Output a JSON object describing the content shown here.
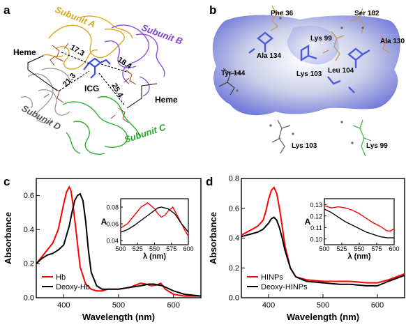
{
  "figure": {
    "panels": {
      "a": {
        "letter": "a",
        "subunits": {
          "A": {
            "label": "Subunit A",
            "color": "#d8a824"
          },
          "B": {
            "label": "Subunit B",
            "color": "#7b3ecb"
          },
          "C": {
            "label": "Subunit C",
            "color": "#29a629"
          },
          "D": {
            "label": "Subunit D",
            "color": "#555555"
          }
        },
        "heme_left": "Heme",
        "heme_right": "Heme",
        "center": "ICG",
        "distances": [
          "17.3",
          "18.4",
          "21.3",
          "25.4"
        ]
      },
      "b": {
        "letter": "b",
        "residues": [
          "Phe 36",
          "Ser 102",
          "Lys 99",
          "Ala 130",
          "Ala 134",
          "Tyr 144",
          "Lys 103",
          "Leu 104",
          "Lys 103",
          "Lys 99"
        ]
      },
      "c": {
        "letter": "c"
      },
      "d": {
        "letter": "d"
      }
    }
  },
  "chart_data": [
    {
      "panel": "c",
      "type": "line",
      "xlabel": "Wavelength (nm)",
      "ylabel": "Absorbance",
      "xlim": [
        350,
        650
      ],
      "ylim": [
        0.0,
        0.7
      ],
      "xticks": [
        400,
        500,
        600
      ],
      "yticks": [
        0.0,
        0.2,
        0.4,
        0.6
      ],
      "legend": "bottom-left",
      "series": [
        {
          "name": "Hb",
          "color": "#ff0000",
          "x": [
            350,
            360,
            370,
            380,
            390,
            400,
            405,
            410,
            413,
            416,
            420,
            425,
            430,
            440,
            450,
            460,
            470,
            480,
            500,
            520,
            540,
            550,
            560,
            570,
            577,
            585,
            600,
            620,
            650
          ],
          "y": [
            0.2,
            0.24,
            0.28,
            0.32,
            0.4,
            0.55,
            0.62,
            0.65,
            0.63,
            0.57,
            0.46,
            0.32,
            0.18,
            0.08,
            0.05,
            0.04,
            0.04,
            0.05,
            0.05,
            0.06,
            0.085,
            0.08,
            0.07,
            0.075,
            0.085,
            0.05,
            0.02,
            0.01,
            0.01
          ]
        },
        {
          "name": "Deoxy-Hb",
          "color": "#000000",
          "x": [
            350,
            360,
            370,
            380,
            390,
            400,
            410,
            415,
            420,
            425,
            430,
            435,
            440,
            445,
            450,
            460,
            470,
            480,
            500,
            520,
            540,
            555,
            565,
            580,
            600,
            620,
            650
          ],
          "y": [
            0.2,
            0.23,
            0.25,
            0.26,
            0.28,
            0.31,
            0.42,
            0.5,
            0.57,
            0.6,
            0.61,
            0.57,
            0.45,
            0.28,
            0.15,
            0.07,
            0.05,
            0.05,
            0.05,
            0.06,
            0.07,
            0.08,
            0.08,
            0.07,
            0.04,
            0.02,
            0.01
          ]
        }
      ],
      "inset": {
        "xlabel": "λ (nm)",
        "ylabel": "A",
        "xlim": [
          500,
          600
        ],
        "ylim": [
          0.035,
          0.09
        ],
        "xticks": [
          500,
          525,
          550,
          575,
          600
        ],
        "yticks": [
          0.04,
          0.06,
          0.08
        ],
        "series": [
          {
            "name": "Hb",
            "color": "#ff0000",
            "x": [
              500,
              510,
              520,
              530,
              540,
              550,
              555,
              560,
              565,
              570,
              577,
              585,
              595,
              600
            ],
            "y": [
              0.055,
              0.06,
              0.07,
              0.08,
              0.085,
              0.078,
              0.072,
              0.068,
              0.07,
              0.075,
              0.08,
              0.068,
              0.052,
              0.045
            ]
          },
          {
            "name": "Deoxy-Hb",
            "color": "#000000",
            "x": [
              500,
              510,
              520,
              530,
              540,
              550,
              555,
              560,
              570,
              580,
              590,
              600
            ],
            "y": [
              0.05,
              0.053,
              0.058,
              0.064,
              0.07,
              0.076,
              0.079,
              0.08,
              0.078,
              0.072,
              0.06,
              0.05
            ]
          }
        ]
      }
    },
    {
      "panel": "d",
      "type": "line",
      "xlabel": "Wavelength (nm)",
      "ylabel": "Absorbance",
      "xlim": [
        350,
        650
      ],
      "ylim": [
        0.0,
        0.8
      ],
      "xticks": [
        400,
        500,
        600
      ],
      "yticks": [
        0.0,
        0.2,
        0.4,
        0.6,
        0.8
      ],
      "legend": "bottom-left",
      "series": [
        {
          "name": "HINPs",
          "color": "#ff0000",
          "x": [
            350,
            360,
            370,
            380,
            390,
            395,
            400,
            405,
            410,
            415,
            420,
            425,
            430,
            440,
            450,
            470,
            500,
            530,
            550,
            580,
            600,
            620,
            650
          ],
          "y": [
            0.42,
            0.44,
            0.46,
            0.48,
            0.52,
            0.58,
            0.66,
            0.72,
            0.74,
            0.7,
            0.6,
            0.48,
            0.35,
            0.2,
            0.14,
            0.12,
            0.11,
            0.11,
            0.11,
            0.1,
            0.1,
            0.12,
            0.16
          ]
        },
        {
          "name": "Deoxy-HINPs",
          "color": "#000000",
          "x": [
            350,
            360,
            370,
            380,
            390,
            400,
            405,
            410,
            415,
            420,
            425,
            430,
            440,
            450,
            470,
            500,
            530,
            550,
            580,
            600,
            620,
            650
          ],
          "y": [
            0.41,
            0.42,
            0.43,
            0.44,
            0.46,
            0.5,
            0.53,
            0.54,
            0.52,
            0.47,
            0.4,
            0.32,
            0.2,
            0.14,
            0.11,
            0.1,
            0.09,
            0.09,
            0.08,
            0.08,
            0.11,
            0.15
          ]
        }
      ],
      "inset": {
        "xlabel": "λ (nm)",
        "ylabel": "A",
        "xlim": [
          500,
          600
        ],
        "ylim": [
          0.095,
          0.135
        ],
        "xticks": [
          500,
          525,
          550,
          575,
          600
        ],
        "yticks": [
          0.1,
          0.11,
          0.12,
          0.13
        ],
        "series": [
          {
            "name": "HINPs",
            "color": "#ff0000",
            "x": [
              500,
              510,
              520,
              530,
              540,
              550,
              560,
              570,
              580,
              590,
              595,
              600
            ],
            "y": [
              0.129,
              0.127,
              0.128,
              0.127,
              0.125,
              0.122,
              0.118,
              0.114,
              0.111,
              0.107,
              0.107,
              0.109
            ]
          },
          {
            "name": "Deoxy-HINPs",
            "color": "#000000",
            "x": [
              500,
              510,
              520,
              530,
              540,
              550,
              560,
              570,
              580,
              590,
              600
            ],
            "y": [
              0.126,
              0.123,
              0.119,
              0.115,
              0.112,
              0.109,
              0.106,
              0.104,
              0.102,
              0.101,
              0.101
            ]
          }
        ]
      }
    }
  ]
}
